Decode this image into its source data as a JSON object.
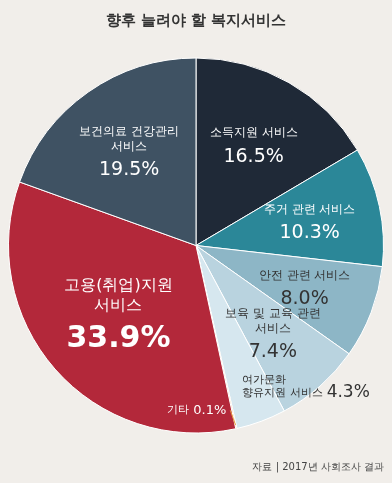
{
  "chart_data": {
    "type": "pie",
    "title": "향후 늘려야 할 복지서비스",
    "source": "자료 | 2017년 사회조사 결과",
    "categories": [
      "소득지원 서비스",
      "주거 관련 서비스",
      "안전 관련 서비스",
      "보육 및 교육 관련 서비스",
      "여가문화 향유지원 서비스",
      "기타",
      "고용(취업)지원 서비스",
      "보건의료 건강관리 서비스"
    ],
    "values": [
      16.5,
      10.3,
      8.0,
      7.4,
      4.3,
      0.1,
      33.9,
      19.5
    ],
    "value_labels": [
      "16.5%",
      "10.3%",
      "8.0%",
      "7.4%",
      "4.3%",
      "0.1%",
      "33.9%",
      "19.5%"
    ],
    "colors": [
      "#1f2937",
      "#2b8798",
      "#8db6c6",
      "#b9d3df",
      "#d6e7ef",
      "#e59a3c",
      "#b3283a",
      "#3f5263"
    ],
    "data_labels": true,
    "legend": false
  }
}
